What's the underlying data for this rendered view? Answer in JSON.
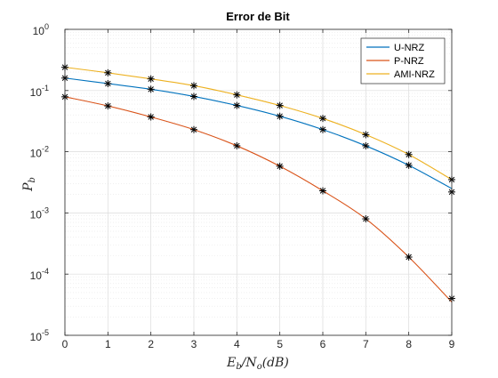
{
  "chart_data": {
    "type": "line",
    "title": "Error de Bit",
    "xlabel": "E_b/N_o(dB)",
    "ylabel": "P_b",
    "x": [
      0,
      1,
      2,
      3,
      4,
      5,
      6,
      7,
      8,
      9
    ],
    "xlim": [
      0,
      9
    ],
    "ylim": [
      1e-05,
      1
    ],
    "yscale": "log",
    "grid": true,
    "minor_grid": true,
    "legend_position": "top-right",
    "x_ticks": [
      "0",
      "1",
      "2",
      "3",
      "4",
      "5",
      "6",
      "7",
      "8",
      "9"
    ],
    "y_ticks": [
      {
        "value": 1e-05,
        "base": "10",
        "exp": "-5"
      },
      {
        "value": 0.0001,
        "base": "10",
        "exp": "-4"
      },
      {
        "value": 0.001,
        "base": "10",
        "exp": "-3"
      },
      {
        "value": 0.01,
        "base": "10",
        "exp": "-2"
      },
      {
        "value": 0.1,
        "base": "10",
        "exp": "-1"
      },
      {
        "value": 1,
        "base": "10",
        "exp": "0"
      }
    ],
    "series": [
      {
        "name": "U-NRZ",
        "color": "#0072BD",
        "values": [
          0.16,
          0.13,
          0.105,
          0.08,
          0.057,
          0.038,
          0.023,
          0.0125,
          0.006,
          0.0025
        ],
        "markers": [
          0.16,
          0.13,
          0.105,
          0.08,
          0.057,
          0.038,
          0.023,
          0.0125,
          0.006,
          0.0022
        ]
      },
      {
        "name": "P-NRZ",
        "color": "#D95319",
        "values": [
          0.079,
          0.056,
          0.037,
          0.023,
          0.0125,
          0.0058,
          0.0023,
          0.0008,
          0.00019,
          3.5e-05
        ],
        "markers": [
          0.079,
          0.056,
          0.037,
          0.023,
          0.0125,
          0.0058,
          0.0023,
          0.0008,
          0.00019,
          4e-05
        ]
      },
      {
        "name": "AMI-NRZ",
        "color": "#EDB120",
        "values": [
          0.24,
          0.195,
          0.155,
          0.12,
          0.085,
          0.057,
          0.035,
          0.019,
          0.009,
          0.0035
        ],
        "markers": [
          0.24,
          0.195,
          0.155,
          0.12,
          0.085,
          0.057,
          0.035,
          0.019,
          0.009,
          0.0035
        ]
      }
    ]
  }
}
